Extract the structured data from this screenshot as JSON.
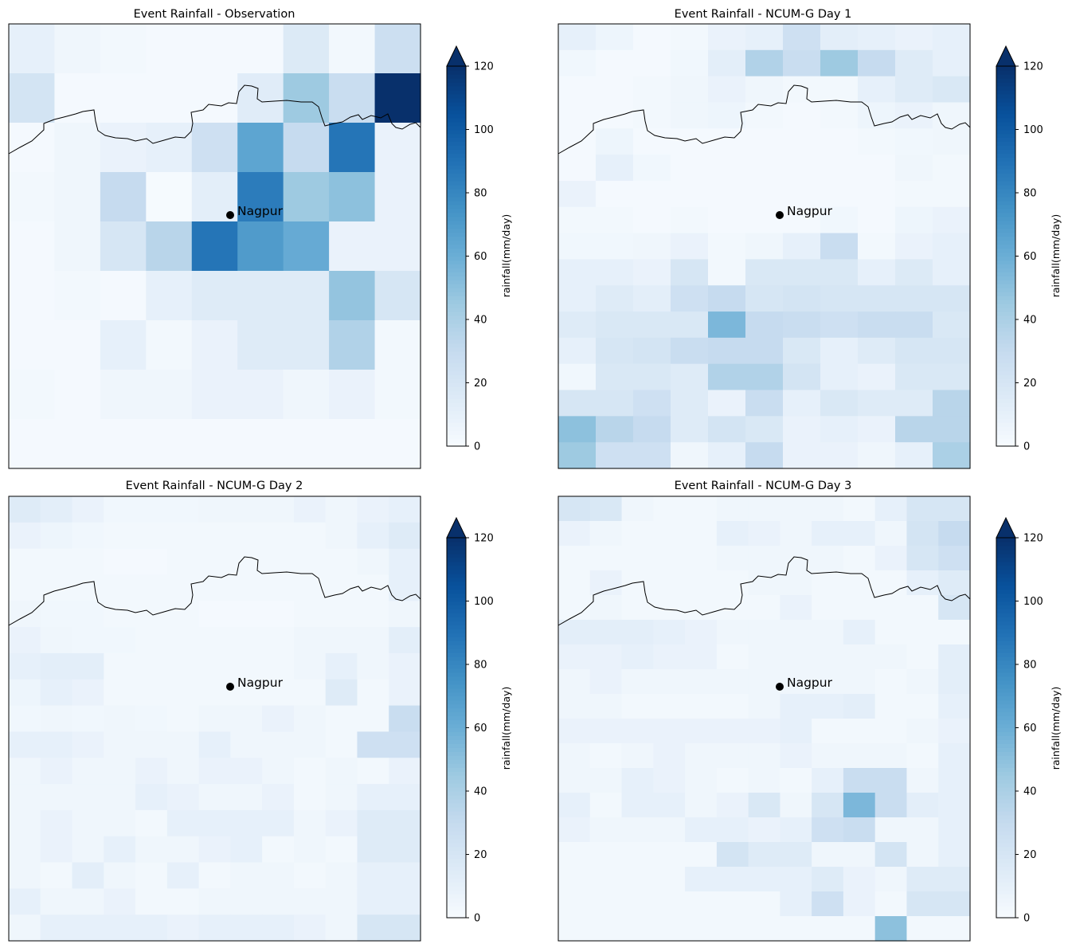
{
  "chart_data": [
    {
      "type": "heatmap",
      "title": "Event Rainfall - Observation",
      "marker_label": "Nagpur",
      "colorbar": {
        "label": "rainfall(mm/day)",
        "ticks": [
          0,
          20,
          40,
          60,
          80,
          100,
          120
        ],
        "range": [
          0,
          120
        ],
        "extend": "max"
      },
      "grid": [
        [
          10,
          5,
          3,
          2,
          2,
          2,
          16,
          3,
          26
        ],
        [
          22,
          2,
          2,
          2,
          2,
          14,
          45,
          28,
          120
        ],
        [
          2,
          5,
          8,
          10,
          25,
          65,
          30,
          88,
          8
        ],
        [
          3,
          5,
          30,
          1,
          12,
          85,
          45,
          50,
          8
        ],
        [
          2,
          5,
          20,
          35,
          88,
          70,
          62,
          8,
          8
        ],
        [
          2,
          3,
          2,
          10,
          15,
          15,
          15,
          48,
          20
        ],
        [
          2,
          2,
          10,
          3,
          8,
          15,
          15,
          38,
          3
        ],
        [
          3,
          2,
          5,
          5,
          8,
          8,
          5,
          8,
          3
        ],
        [
          2,
          2,
          2,
          2,
          2,
          2,
          2,
          2,
          2
        ]
      ]
    },
    {
      "type": "heatmap",
      "title": "Event Rainfall - NCUM-G Day 1",
      "marker_label": "Nagpur",
      "colorbar": {
        "label": "rainfall(mm/day)",
        "ticks": [
          0,
          20,
          40,
          60,
          80,
          100,
          120
        ],
        "range": [
          0,
          120
        ],
        "extend": "max"
      },
      "grid": [
        [
          10,
          6,
          2,
          3,
          8,
          10,
          25,
          12,
          10,
          8,
          10
        ],
        [
          4,
          2,
          2,
          4,
          12,
          38,
          28,
          45,
          30,
          15,
          10
        ],
        [
          2,
          2,
          3,
          5,
          8,
          5,
          3,
          3,
          10,
          15,
          18
        ],
        [
          2,
          2,
          3,
          5,
          6,
          3,
          2,
          3,
          6,
          8,
          5
        ],
        [
          2,
          6,
          2,
          2,
          2,
          2,
          2,
          2,
          3,
          4,
          5
        ],
        [
          2,
          10,
          4,
          2,
          2,
          2,
          2,
          2,
          2,
          5,
          3
        ],
        [
          8,
          2,
          2,
          2,
          2,
          2,
          2,
          2,
          2,
          3,
          3
        ],
        [
          3,
          3,
          2,
          3,
          2,
          2,
          2,
          4,
          2,
          6,
          8
        ],
        [
          4,
          4,
          5,
          8,
          3,
          5,
          10,
          28,
          3,
          8,
          10
        ],
        [
          10,
          10,
          8,
          20,
          3,
          18,
          18,
          18,
          10,
          16,
          10
        ],
        [
          10,
          15,
          12,
          25,
          30,
          20,
          22,
          20,
          20,
          20,
          20
        ],
        [
          15,
          18,
          18,
          18,
          55,
          30,
          28,
          25,
          28,
          28,
          18
        ],
        [
          10,
          20,
          22,
          28,
          30,
          30,
          18,
          10,
          15,
          20,
          20
        ],
        [
          4,
          18,
          18,
          15,
          38,
          38,
          22,
          10,
          8,
          18,
          18
        ],
        [
          20,
          20,
          25,
          15,
          8,
          28,
          10,
          18,
          15,
          15,
          35
        ],
        [
          50,
          35,
          30,
          15,
          22,
          18,
          8,
          10,
          8,
          35,
          35
        ],
        [
          45,
          25,
          25,
          5,
          10,
          30,
          8,
          8,
          5,
          10,
          40
        ]
      ]
    },
    {
      "type": "heatmap",
      "title": "Event Rainfall - NCUM-G Day 2",
      "marker_label": "Nagpur",
      "colorbar": {
        "label": "rainfall(mm/day)",
        "ticks": [
          0,
          20,
          40,
          60,
          80,
          100,
          120
        ],
        "range": [
          0,
          120
        ],
        "extend": "max"
      },
      "grid": [
        [
          15,
          12,
          8,
          4,
          4,
          4,
          5,
          5,
          5,
          8,
          5,
          8,
          10
        ],
        [
          8,
          6,
          4,
          3,
          3,
          3,
          3,
          3,
          3,
          3,
          5,
          10,
          15
        ],
        [
          3,
          3,
          3,
          2,
          2,
          3,
          3,
          3,
          3,
          3,
          3,
          5,
          10
        ],
        [
          3,
          3,
          3,
          3,
          3,
          3,
          3,
          3,
          3,
          3,
          3,
          3,
          10
        ],
        [
          5,
          4,
          4,
          3,
          3,
          3,
          2,
          2,
          2,
          3,
          3,
          3,
          5
        ],
        [
          8,
          5,
          4,
          4,
          3,
          3,
          3,
          3,
          3,
          5,
          5,
          5,
          12
        ],
        [
          10,
          12,
          12,
          3,
          3,
          3,
          3,
          3,
          3,
          5,
          10,
          5,
          8
        ],
        [
          6,
          10,
          8,
          3,
          3,
          3,
          3,
          3,
          3,
          3,
          15,
          3,
          8
        ],
        [
          4,
          5,
          4,
          5,
          4,
          3,
          5,
          5,
          8,
          5,
          3,
          3,
          28
        ],
        [
          10,
          10,
          8,
          5,
          5,
          5,
          10,
          5,
          5,
          5,
          3,
          25,
          25
        ],
        [
          5,
          8,
          5,
          5,
          8,
          5,
          8,
          8,
          5,
          3,
          5,
          3,
          8
        ],
        [
          5,
          5,
          5,
          5,
          10,
          8,
          5,
          5,
          8,
          3,
          5,
          10,
          10
        ],
        [
          5,
          8,
          5,
          5,
          3,
          10,
          10,
          10,
          10,
          5,
          8,
          15,
          15
        ],
        [
          5,
          8,
          5,
          10,
          5,
          5,
          8,
          10,
          3,
          5,
          3,
          15,
          15
        ],
        [
          5,
          3,
          12,
          5,
          3,
          10,
          3,
          5,
          5,
          3,
          5,
          10,
          10
        ],
        [
          10,
          5,
          5,
          8,
          3,
          3,
          5,
          5,
          5,
          5,
          5,
          10,
          10
        ],
        [
          5,
          10,
          10,
          10,
          10,
          8,
          10,
          10,
          10,
          8,
          5,
          20,
          20
        ]
      ]
    },
    {
      "type": "heatmap",
      "title": "Event Rainfall - NCUM-G Day 3",
      "marker_label": "Nagpur",
      "colorbar": {
        "label": "rainfall(mm/day)",
        "ticks": [
          0,
          20,
          40,
          60,
          80,
          100,
          120
        ],
        "range": [
          0,
          120
        ],
        "extend": "max"
      },
      "grid": [
        [
          20,
          18,
          5,
          3,
          3,
          5,
          5,
          5,
          5,
          3,
          10,
          20,
          20
        ],
        [
          8,
          5,
          3,
          3,
          3,
          10,
          8,
          5,
          10,
          10,
          5,
          22,
          30
        ],
        [
          3,
          3,
          3,
          3,
          3,
          5,
          5,
          5,
          5,
          3,
          8,
          20,
          25
        ],
        [
          3,
          8,
          3,
          3,
          3,
          3,
          5,
          5,
          3,
          3,
          3,
          10,
          15
        ],
        [
          3,
          5,
          3,
          3,
          3,
          3,
          3,
          8,
          3,
          3,
          3,
          3,
          20
        ],
        [
          12,
          12,
          12,
          10,
          8,
          5,
          5,
          5,
          5,
          10,
          3,
          3,
          3
        ],
        [
          8,
          8,
          10,
          8,
          8,
          3,
          5,
          5,
          5,
          5,
          5,
          3,
          12
        ],
        [
          5,
          8,
          5,
          5,
          5,
          5,
          5,
          5,
          5,
          5,
          3,
          5,
          12
        ],
        [
          5,
          5,
          3,
          3,
          3,
          3,
          5,
          10,
          10,
          12,
          3,
          3,
          10
        ],
        [
          8,
          8,
          8,
          8,
          8,
          8,
          8,
          10,
          3,
          3,
          3,
          5,
          8
        ],
        [
          5,
          3,
          5,
          8,
          5,
          5,
          5,
          8,
          5,
          5,
          5,
          3,
          10
        ],
        [
          5,
          5,
          10,
          8,
          5,
          3,
          5,
          3,
          10,
          28,
          28,
          5,
          10
        ],
        [
          10,
          3,
          10,
          10,
          5,
          8,
          18,
          5,
          20,
          55,
          28,
          12,
          10
        ],
        [
          8,
          5,
          5,
          5,
          10,
          10,
          8,
          10,
          25,
          28,
          5,
          5,
          10
        ],
        [
          3,
          3,
          3,
          3,
          3,
          22,
          15,
          15,
          5,
          5,
          22,
          5,
          10
        ],
        [
          3,
          3,
          3,
          3,
          10,
          10,
          10,
          10,
          15,
          8,
          5,
          15,
          15
        ],
        [
          3,
          3,
          3,
          3,
          3,
          3,
          3,
          10,
          25,
          8,
          3,
          20,
          20
        ],
        [
          3,
          3,
          3,
          3,
          3,
          3,
          3,
          3,
          3,
          3,
          50,
          3,
          3
        ]
      ]
    }
  ]
}
